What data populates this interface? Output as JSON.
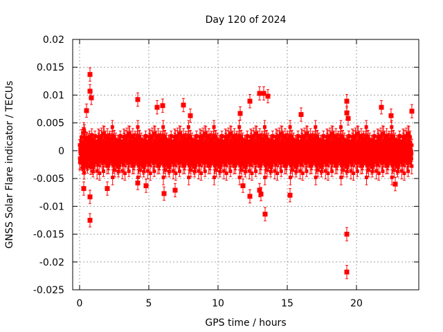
{
  "chart_data": {
    "type": "scatter",
    "title": "Day 120 of 2024",
    "xlabel": "GPS time / hours",
    "ylabel": "GNSS Solar Flare indicator / TECUs",
    "xlim": [
      -0.5,
      24.5
    ],
    "ylim": [
      -0.025,
      0.02
    ],
    "x_ticks": [
      0,
      5,
      10,
      15,
      20
    ],
    "x_tick_labels": [
      "0",
      "5",
      "10",
      "15",
      "20"
    ],
    "y_ticks": [
      -0.025,
      -0.02,
      -0.015,
      -0.01,
      -0.005,
      0,
      0.005,
      0.01,
      0.015,
      0.02
    ],
    "y_tick_labels": [
      "-0.025",
      "-0.02",
      "-0.015",
      "-0.01",
      "-0.005",
      "0",
      "0.005",
      "0.01",
      "0.015",
      "0.02"
    ],
    "grid": true,
    "series_color": "#ff0000",
    "marker": "square",
    "error_bars": true,
    "typical_error": 0.0012,
    "bulk_band": {
      "x_range": [
        0,
        24
      ],
      "y_spread": 0.0032,
      "point_count": 2880
    },
    "notable_points": [
      {
        "x": 0.75,
        "y": 0.0137
      },
      {
        "x": 0.75,
        "y": 0.0107
      },
      {
        "x": 0.85,
        "y": 0.0095
      },
      {
        "x": 0.75,
        "y": -0.0083
      },
      {
        "x": 0.75,
        "y": -0.0125
      },
      {
        "x": 0.5,
        "y": 0.0072
      },
      {
        "x": 0.3,
        "y": -0.0068
      },
      {
        "x": 2.0,
        "y": -0.0068
      },
      {
        "x": 4.2,
        "y": 0.0092
      },
      {
        "x": 4.2,
        "y": -0.0058
      },
      {
        "x": 4.8,
        "y": -0.0063
      },
      {
        "x": 5.6,
        "y": 0.0078
      },
      {
        "x": 6.0,
        "y": 0.0081
      },
      {
        "x": 6.1,
        "y": -0.0077
      },
      {
        "x": 6.9,
        "y": -0.0071
      },
      {
        "x": 7.5,
        "y": 0.0082
      },
      {
        "x": 8.0,
        "y": 0.0063
      },
      {
        "x": 11.6,
        "y": 0.0067
      },
      {
        "x": 11.8,
        "y": -0.0063
      },
      {
        "x": 12.3,
        "y": 0.0089
      },
      {
        "x": 12.3,
        "y": -0.0082
      },
      {
        "x": 13.0,
        "y": 0.0103
      },
      {
        "x": 13.3,
        "y": 0.0103
      },
      {
        "x": 13.0,
        "y": -0.0071
      },
      {
        "x": 13.1,
        "y": -0.0078
      },
      {
        "x": 13.4,
        "y": -0.0114
      },
      {
        "x": 13.6,
        "y": 0.0098
      },
      {
        "x": 15.2,
        "y": -0.008
      },
      {
        "x": 16.0,
        "y": 0.0065
      },
      {
        "x": 19.3,
        "y": 0.0089
      },
      {
        "x": 19.3,
        "y": 0.0068
      },
      {
        "x": 19.4,
        "y": 0.0058
      },
      {
        "x": 19.3,
        "y": -0.015
      },
      {
        "x": 19.3,
        "y": -0.0218
      },
      {
        "x": 21.8,
        "y": 0.0078
      },
      {
        "x": 22.5,
        "y": 0.0063
      },
      {
        "x": 24.0,
        "y": 0.0071
      },
      {
        "x": 22.8,
        "y": -0.006
      }
    ]
  }
}
